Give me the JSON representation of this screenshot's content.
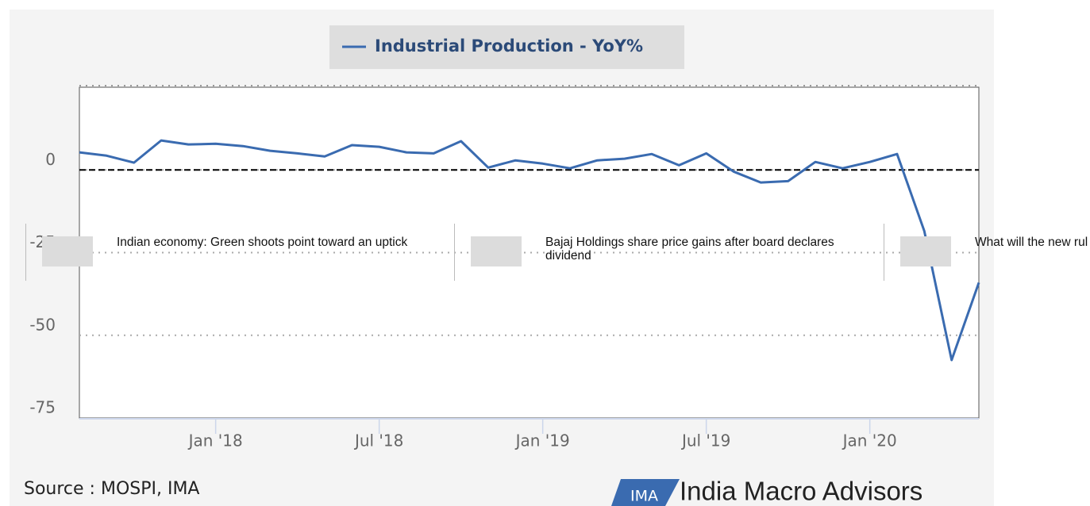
{
  "chart_data": {
    "type": "line",
    "legend_label": "Industrial Production - YoY%",
    "x": [
      "2017-08",
      "2017-09",
      "2017-10",
      "2017-11",
      "2017-12",
      "2018-01",
      "2018-02",
      "2018-03",
      "2018-04",
      "2018-05",
      "2018-06",
      "2018-07",
      "2018-08",
      "2018-09",
      "2018-10",
      "2018-11",
      "2018-12",
      "2019-01",
      "2019-02",
      "2019-03",
      "2019-04",
      "2019-05",
      "2019-06",
      "2019-07",
      "2019-08",
      "2019-09",
      "2019-10",
      "2019-11",
      "2019-12",
      "2020-01",
      "2020-02",
      "2020-03",
      "2020-04",
      "2020-05"
    ],
    "series": [
      {
        "name": "Industrial Production - YoY%",
        "color": "#3a6bb0",
        "values": [
          5.3,
          4.3,
          2.2,
          8.9,
          7.7,
          7.9,
          7.2,
          5.8,
          5.0,
          4.1,
          7.5,
          7.0,
          5.3,
          5.0,
          8.7,
          0.7,
          2.9,
          1.9,
          0.5,
          2.9,
          3.4,
          4.8,
          1.4,
          5.0,
          -0.5,
          -3.8,
          -3.4,
          2.4,
          0.5,
          2.4,
          4.8,
          -18.5,
          -57.5,
          -34.1
        ]
      }
    ],
    "xlim": [
      "2017-08",
      "2020-05"
    ],
    "xticks": [
      {
        "value": "2018-01",
        "label": "Jan '18"
      },
      {
        "value": "2018-07",
        "label": "Jul '18"
      },
      {
        "value": "2019-01",
        "label": "Jan '19"
      },
      {
        "value": "2019-07",
        "label": "Jul '19"
      },
      {
        "value": "2020-01",
        "label": "Jan '20"
      }
    ],
    "ylim": [
      -75,
      25
    ],
    "yticks": [
      -75,
      -50,
      -25,
      0
    ],
    "grid": true,
    "plot_line": {
      "value": 0,
      "color": "#000000"
    }
  },
  "source": "Source : MOSPI, IMA",
  "logo": {
    "mark": "IMA",
    "name": "India Macro Advisors"
  },
  "news": [
    "Indian economy: Green shoots point toward an uptick",
    "Bajaj Holdings share price gains after board declares dividend",
    "What will the new rules for motor insurance mean for you"
  ]
}
